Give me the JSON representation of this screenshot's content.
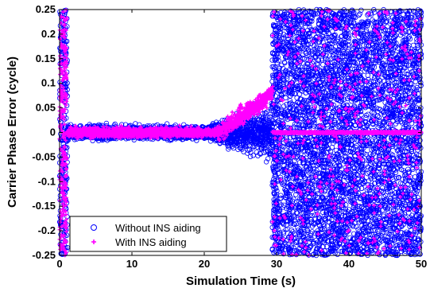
{
  "chart_data": {
    "type": "scatter",
    "title": "",
    "xlabel": "Simulation Time (s)",
    "ylabel": "Carrier Phase Error (cycle)",
    "xlim": [
      0,
      50
    ],
    "ylim": [
      -0.25,
      0.25
    ],
    "xticks": [
      "0",
      "10",
      "20",
      "30",
      "40",
      "50"
    ],
    "yticks": [
      "-0.25",
      "-0.2",
      "-0.15",
      "-0.1",
      "-0.05",
      "0",
      "0.05",
      "0.1",
      "0.15",
      "0.2",
      "0.25"
    ],
    "grid": false,
    "legend_position": "bottom-left",
    "series": [
      {
        "name": "Without INS aiding",
        "marker": "circle",
        "color": "#0000ff",
        "description_points": [
          {
            "x_range": [
              0,
              1
            ],
            "y_range": [
              -0.25,
              0.25
            ]
          },
          {
            "x_range": [
              1,
              20
            ],
            "y_spread": 0.02,
            "center": 0
          },
          {
            "x_range": [
              20,
              29
            ],
            "y_spread_growing_to": 0.07,
            "center": 0
          },
          {
            "x_range": [
              29.5,
              50
            ],
            "y_range": [
              -0.25,
              0.25
            ]
          }
        ]
      },
      {
        "name": "With INS aiding",
        "marker": "plus",
        "color": "#ff00ff",
        "description_points": [
          {
            "x_range": [
              0,
              1
            ],
            "y_range": [
              -0.25,
              0.25
            ]
          },
          {
            "x_range": [
              1,
              22
            ],
            "y_spread": 0.015,
            "center": 0
          },
          {
            "x_range": [
              22,
              29
            ],
            "y_trend": [
              0.0,
              0.09
            ]
          },
          {
            "x_range": [
              29.5,
              50
            ],
            "y_range": [
              -0.25,
              0.25
            ],
            "dense_band_at": 0
          }
        ]
      }
    ]
  },
  "legend": {
    "items": [
      {
        "label": "Without INS aiding",
        "color": "#0000ff"
      },
      {
        "label": "With INS aiding",
        "color": "#ff00ff"
      }
    ]
  }
}
